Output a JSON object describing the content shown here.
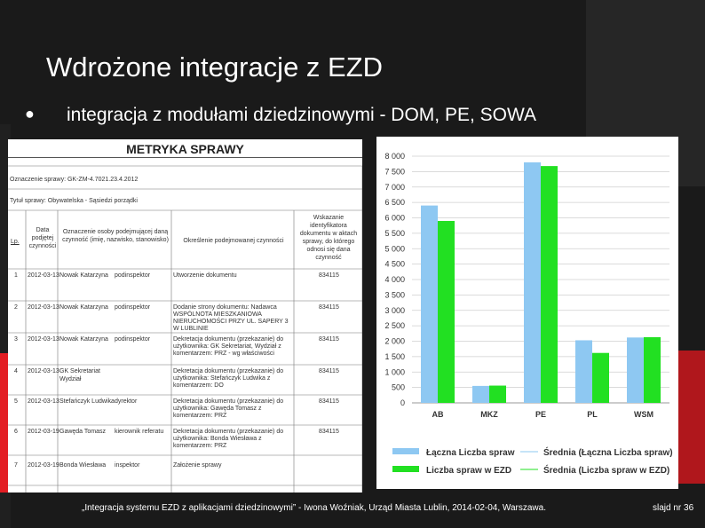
{
  "slide": {
    "title": "Wdrożone integracje z EZD",
    "bullet": "integracja z modułami dziedzinowymi - DOM, PE, SOWA",
    "footer": "„Integracja systemu EZD z aplikacjami dziedzinowymi” - Iwona Woźniak, Urząd Miasta Lublin, 2014-02-04, Warszawa.",
    "slide_number": "slajd nr 36"
  },
  "document": {
    "title": "METRYKA SPRAWY",
    "case_label": "Oznaczenie sprawy: GK-ZM-4.7021.23.4.2012",
    "subject_label": "Tytuł sprawy: Obywatelska - Sąsiedzi porządki",
    "headers": [
      "Lp.",
      "Data podjętej czynności",
      "Oznaczenie osoby podejmującej daną czynność (imię, nazwisko, stanowisko)",
      "Określenie podejmowanej czynności",
      "Wskazanie identyfikatora dokumentu w aktach sprawy, do którego odnosi się dana czynność"
    ],
    "rows": [
      {
        "lp": "1",
        "date": "2012-03-13",
        "person": "Nowak Katarzyna",
        "role": "podinspektor",
        "action": "Utworzenie dokumentu",
        "id": "834115"
      },
      {
        "lp": "2",
        "date": "2012-03-13",
        "person": "Nowak Katarzyna",
        "role": "podinspektor",
        "action": "Dodanie strony dokumentu: Nadawca WSPÓLNOTA MIESZKANIOWA NIERUCHOMOŚCI PRZY UL. SAPERY 3 W LUBLINIE",
        "id": "834115"
      },
      {
        "lp": "3",
        "date": "2012-03-13",
        "person": "Nowak Katarzyna",
        "role": "podinspektor",
        "action": "Dekretacja dokumentu (przekazanie) do użytkownika: GK Sekretariat, Wydział z komentarzem: PRZ - wg właściwości",
        "id": "834115"
      },
      {
        "lp": "4",
        "date": "2012-03-13",
        "person": "GK Sekretariat",
        "role": "Wydział",
        "action": "Dekretacja dokumentu (przekazanie) do użytkownika: Stefańczyk Ludwika z komentarzem: DO",
        "id": "834115"
      },
      {
        "lp": "5",
        "date": "2012-03-13",
        "person": "Stefańczyk Ludwika",
        "role": "dyrektor",
        "action": "Dekretacja dokumentu (przekazanie) do użytkownika: Gawęda Tomasz z komentarzem: PRZ",
        "id": "834115"
      },
      {
        "lp": "6",
        "date": "2012-03-19",
        "person": "Gawęda Tomasz",
        "role": "kierownik referatu",
        "action": "Dekretacja dokumentu (przekazanie) do użytkownika: Bonda Wiesława z komentarzem: PRZ",
        "id": "834115"
      },
      {
        "lp": "7",
        "date": "2012-03-19",
        "person": "Bonda Wiesława",
        "role": "inspektor",
        "action": "Założenie sprawy",
        "id": ""
      }
    ]
  },
  "chart_data": {
    "type": "bar",
    "categories": [
      "AB",
      "MKZ",
      "PE",
      "PL",
      "WSM"
    ],
    "series": [
      {
        "name": "Łączna Liczba spraw",
        "color": "#8ec8f2",
        "values": [
          6400,
          550,
          7800,
          2030,
          2120
        ]
      },
      {
        "name": "Liczba spraw w EZD",
        "color": "#22e022",
        "values": [
          5900,
          560,
          7680,
          1620,
          2130
        ]
      }
    ],
    "reference_lines": [
      {
        "name": "Średnia (Łączna Liczba spraw)",
        "color": "#8ec8f2"
      },
      {
        "name": "Średnia (Liczba spraw w EZD)",
        "color": "#22e022"
      }
    ],
    "yticks": [
      "0",
      "500",
      "1 000",
      "1 500",
      "2 000",
      "2 500",
      "3 000",
      "3 500",
      "4 000",
      "4 500",
      "5 000",
      "5 500",
      "6 000",
      "6 500",
      "7 000",
      "7 500",
      "8 000"
    ],
    "ylim": [
      0,
      8000
    ],
    "grid": true,
    "legend_position": "bottom"
  }
}
